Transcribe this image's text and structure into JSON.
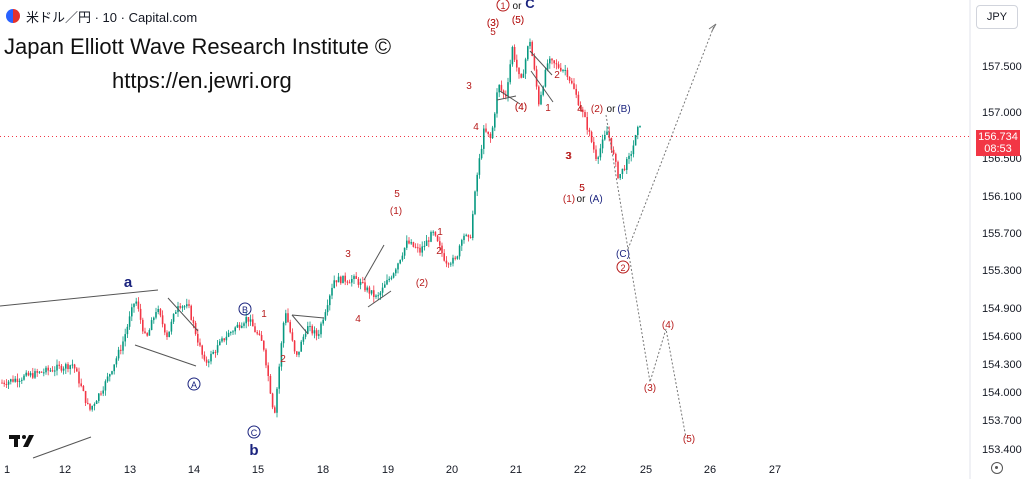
{
  "header": {
    "symbol": "米ドル／円 · 10 · Capital.com"
  },
  "watermark": {
    "line1": "Japan Elliott Wave Research Institute ©",
    "line2": "https://en.jewri.org"
  },
  "currency_selector": {
    "label": "JPY"
  },
  "last_price": {
    "value": "156.734",
    "countdown": "08:53"
  },
  "chart_data": {
    "type": "line",
    "title": "",
    "y_axis": {
      "ticks": [
        157.5,
        157.0,
        156.5,
        156.1,
        155.7,
        155.3,
        154.9,
        154.6,
        154.3,
        154.0,
        153.7,
        153.4
      ],
      "tick_labels": [
        "157.500",
        "157.000",
        "156.500",
        "156.100",
        "155.700",
        "155.300",
        "154.900",
        "154.600",
        "154.300",
        "154.000",
        "153.700",
        "153.400"
      ]
    },
    "x_axis": {
      "tick_labels": [
        "1",
        "12",
        "13",
        "14",
        "15",
        "18",
        "19",
        "20",
        "21",
        "22",
        "25",
        "26",
        "27"
      ]
    },
    "series": [
      {
        "values": [
          {
            "x": "1",
            "y": 154.1
          },
          {
            "x": "12",
            "y": 154.3
          },
          {
            "x": "12",
            "y": 153.8
          },
          {
            "x": "12",
            "y": 154.1
          },
          {
            "x": "12",
            "y": 154.5
          },
          {
            "x": "13",
            "y": 155.0
          },
          {
            "x": "13",
            "y": 154.55
          },
          {
            "x": "13",
            "y": 154.9
          },
          {
            "x": "13",
            "y": 154.6
          },
          {
            "x": "13",
            "y": 154.95
          },
          {
            "x": "13",
            "y": 154.9
          },
          {
            "x": "14",
            "y": 154.3
          },
          {
            "x": "14",
            "y": 154.6
          },
          {
            "x": "14",
            "y": 154.8
          },
          {
            "x": "15",
            "y": 154.5
          },
          {
            "x": "15",
            "y": 153.75
          },
          {
            "x": "15",
            "y": 154.9
          },
          {
            "x": "15",
            "y": 154.35
          },
          {
            "x": "15",
            "y": 154.7
          },
          {
            "x": "15",
            "y": 154.6
          },
          {
            "x": "18",
            "y": 155.2
          },
          {
            "x": "18",
            "y": 155.2
          },
          {
            "x": "18",
            "y": 155.0
          },
          {
            "x": "19",
            "y": 155.3
          },
          {
            "x": "19",
            "y": 155.6
          },
          {
            "x": "19",
            "y": 155.5
          },
          {
            "x": "19",
            "y": 155.7
          },
          {
            "x": "19",
            "y": 155.4
          },
          {
            "x": "20",
            "y": 155.4
          },
          {
            "x": "20",
            "y": 155.7
          },
          {
            "x": "20",
            "y": 155.6
          },
          {
            "x": "20",
            "y": 156.3
          },
          {
            "x": "20",
            "y": 156.8
          },
          {
            "x": "20",
            "y": 156.7
          },
          {
            "x": "20",
            "y": 157.3
          },
          {
            "x": "20",
            "y": 157.15
          },
          {
            "x": "20",
            "y": 157.7
          },
          {
            "x": "21",
            "y": 157.3
          },
          {
            "x": "21",
            "y": 157.8
          },
          {
            "x": "21",
            "y": 157.1
          },
          {
            "x": "21",
            "y": 157.55
          },
          {
            "x": "21",
            "y": 157.5
          },
          {
            "x": "21",
            "y": 157.45
          },
          {
            "x": "21",
            "y": 157.2
          },
          {
            "x": "22",
            "y": 156.9
          },
          {
            "x": "22",
            "y": 156.5
          },
          {
            "x": "22",
            "y": 156.8
          },
          {
            "x": "22",
            "y": 156.3
          },
          {
            "x": "22",
            "y": 156.5
          },
          {
            "x": "22",
            "y": 156.9
          }
        ]
      }
    ],
    "projection": [
      {
        "x": "22",
        "y": 156.95
      },
      {
        "x": "25",
        "y": 155.6
      },
      {
        "x": "25",
        "y": 154.1
      },
      {
        "x": "25",
        "y": 154.6
      },
      {
        "x": "26",
        "y": 153.5
      }
    ],
    "alt_projection": [
      {
        "x": "25",
        "y": 155.6
      },
      {
        "x": "26",
        "y": 157.9
      }
    ],
    "annotations": [
      {
        "text": "a",
        "color": "#1a237e"
      },
      {
        "text": "b",
        "color": "#1a237e"
      },
      {
        "text": "A",
        "color": "#1a237e",
        "circled": true
      },
      {
        "text": "B",
        "color": "#1a237e",
        "circled": true
      },
      {
        "text": "C",
        "color": "#1a237e",
        "circled": true
      },
      {
        "text": "1",
        "color": "#b71c1c"
      },
      {
        "text": "2",
        "color": "#b71c1c"
      },
      {
        "text": "3",
        "color": "#b71c1c"
      },
      {
        "text": "4",
        "color": "#b71c1c"
      },
      {
        "text": "5",
        "color": "#b71c1c"
      },
      {
        "text": "(1)",
        "color": "#b71c1c"
      },
      {
        "text": "(2)",
        "color": "#b71c1c"
      },
      {
        "text": "(3)",
        "color": "#b71c1c"
      },
      {
        "text": "(4)",
        "color": "#b71c1c"
      },
      {
        "text": "(5)",
        "color": "#b71c1c"
      },
      {
        "text": "1",
        "color": "#b71c1c"
      },
      {
        "text": "2",
        "color": "#b71c1c"
      },
      {
        "text": "3",
        "color": "#b71c1c"
      },
      {
        "text": "4",
        "color": "#b71c1c"
      },
      {
        "text": "5",
        "color": "#b71c1c"
      },
      {
        "text": "3",
        "color": "#b71c1c"
      },
      {
        "text": "4",
        "color": "#b71c1c"
      },
      {
        "text": "5",
        "color": "#b71c1c"
      },
      {
        "text": "(3)",
        "color": "#b71c1c"
      },
      {
        "text": "(5)",
        "color": "#b71c1c"
      },
      {
        "text": "(4)",
        "color": "#b71c1c"
      },
      {
        "text": "1",
        "color": "#b71c1c",
        "circled": true
      },
      {
        "text": "or",
        "color": "#111"
      },
      {
        "text": "C",
        "color": "#1a237e"
      },
      {
        "text": "1",
        "color": "#b71c1c"
      },
      {
        "text": "2",
        "color": "#b71c1c"
      },
      {
        "text": "4",
        "color": "#b71c1c"
      },
      {
        "text": "3",
        "color": "#b71c1c"
      },
      {
        "text": "5",
        "color": "#b71c1c"
      },
      {
        "text": "(2)",
        "color": "#b71c1c"
      },
      {
        "text": "or",
        "color": "#111"
      },
      {
        "text": "(B)",
        "color": "#1a237e"
      },
      {
        "text": "(1)",
        "color": "#b71c1c"
      },
      {
        "text": "or",
        "color": "#111"
      },
      {
        "text": "(A)",
        "color": "#1a237e"
      },
      {
        "text": "(C)",
        "color": "#1a237e"
      },
      {
        "text": "2",
        "color": "#b71c1c",
        "circled": true
      },
      {
        "text": "(3)",
        "color": "#b71c1c"
      },
      {
        "text": "(4)",
        "color": "#b71c1c"
      },
      {
        "text": "(5)",
        "color": "#b71c1c"
      }
    ],
    "colors": {
      "up": "#089981",
      "down": "#f23645",
      "wave_red": "#b71c1c",
      "wave_blue": "#1a237e",
      "price_line": "#f23645"
    },
    "grid": false
  }
}
